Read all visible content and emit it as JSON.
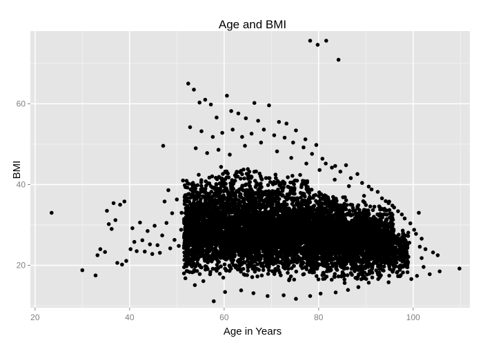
{
  "chart_data": {
    "type": "scatter",
    "title": "Age and BMI",
    "xlabel": "Age in Years",
    "ylabel": "BMI",
    "xlim": [
      19,
      112
    ],
    "ylim": [
      9.5,
      78
    ],
    "x_ticks": [
      20,
      40,
      60,
      80,
      100
    ],
    "y_ticks": [
      20,
      40,
      60
    ],
    "grid": true,
    "colors": {
      "panel": "#e5e5e5",
      "grid_major": "#ffffff",
      "grid_minor": "#f2f2f2",
      "point": "#000000",
      "tick": "#7f7f7f"
    },
    "points": [
      [
        23.5,
        33
      ],
      [
        30,
        18.8
      ],
      [
        32.8,
        17.5
      ],
      [
        33.2,
        22.5
      ],
      [
        33.8,
        24
      ],
      [
        34.8,
        23.3
      ],
      [
        35.2,
        33.5
      ],
      [
        35.6,
        30.2
      ],
      [
        36.2,
        29
      ],
      [
        36.6,
        35.4
      ],
      [
        37,
        31.2
      ],
      [
        37.4,
        20.6
      ],
      [
        38,
        35
      ],
      [
        38.4,
        20.2
      ],
      [
        38.9,
        35.8
      ],
      [
        39.3,
        21.1
      ],
      [
        40.2,
        24
      ],
      [
        40.6,
        29.2
      ],
      [
        41,
        25.8
      ],
      [
        41.5,
        23.5
      ],
      [
        42.2,
        30.6
      ],
      [
        42.7,
        26.2
      ],
      [
        43.2,
        23.4
      ],
      [
        43.8,
        28.5
      ],
      [
        44.3,
        25.2
      ],
      [
        44.8,
        22.8
      ],
      [
        45.3,
        29.8
      ],
      [
        45.9,
        25
      ],
      [
        46.4,
        23.1
      ],
      [
        46.9,
        27.4
      ],
      [
        47.1,
        49.6
      ],
      [
        47.4,
        35.8
      ],
      [
        47.8,
        30.5
      ],
      [
        48.2,
        38.6
      ],
      [
        48.6,
        24.2
      ],
      [
        49,
        32.9
      ],
      [
        49.5,
        26.3
      ],
      [
        50,
        36.3
      ],
      [
        50.4,
        24.8
      ],
      [
        50.9,
        28.8
      ],
      [
        51,
        33
      ],
      [
        51.3,
        41
      ],
      [
        52.4,
        65
      ],
      [
        53.6,
        63.5
      ],
      [
        54.8,
        60.3
      ],
      [
        56,
        61
      ],
      [
        57.2,
        59.8
      ],
      [
        58.4,
        56.6
      ],
      [
        60.6,
        62
      ],
      [
        61.5,
        58.2
      ],
      [
        63,
        57.6
      ],
      [
        64.6,
        56.4
      ],
      [
        66.4,
        60.2
      ],
      [
        67.2,
        55.8
      ],
      [
        69.5,
        59.6
      ],
      [
        71.6,
        55.5
      ],
      [
        73.2,
        55.1
      ],
      [
        75.2,
        53.4
      ],
      [
        77.2,
        51.2
      ],
      [
        79.5,
        49.8
      ],
      [
        81.5,
        45.2
      ],
      [
        83.5,
        44.6
      ],
      [
        85.8,
        44.8
      ],
      [
        88.2,
        42.6
      ],
      [
        90.6,
        39.5
      ],
      [
        92.5,
        38.2
      ],
      [
        94.8,
        35.4
      ],
      [
        96.8,
        33.4
      ],
      [
        98.2,
        31.6
      ],
      [
        100.2,
        28.8
      ],
      [
        101.2,
        33
      ],
      [
        101.8,
        26.6
      ],
      [
        102.6,
        24
      ],
      [
        103.5,
        17.8
      ],
      [
        104.2,
        23.2
      ],
      [
        105.2,
        22.5
      ],
      [
        105.6,
        18.5
      ],
      [
        109.8,
        19.2
      ],
      [
        78.2,
        75.6
      ],
      [
        79.8,
        74.6
      ],
      [
        81.6,
        75.6
      ],
      [
        84.2,
        70.9
      ],
      [
        57.8,
        11.1
      ],
      [
        60.2,
        13.4
      ],
      [
        63.6,
        13.8
      ],
      [
        66.2,
        13.1
      ],
      [
        69.2,
        12.4
      ],
      [
        72.6,
        12.6
      ],
      [
        75.2,
        11.7
      ],
      [
        78.2,
        12.4
      ],
      [
        80.4,
        13
      ],
      [
        83.6,
        13.3
      ],
      [
        86.2,
        13.9
      ],
      [
        88.4,
        14.6
      ],
      [
        90.6,
        15.7
      ],
      [
        92.6,
        16.6
      ],
      [
        94.8,
        15.8
      ],
      [
        96.8,
        17.3
      ],
      [
        98.8,
        18.3
      ],
      [
        53.8,
        15.1
      ],
      [
        55.6,
        16.1
      ],
      [
        51.8,
        16.8
      ],
      [
        52.8,
        54.2
      ],
      [
        55.2,
        53.2
      ],
      [
        57.6,
        51.8
      ],
      [
        59.6,
        52.8
      ],
      [
        61.8,
        53.6
      ],
      [
        63.8,
        51.8
      ],
      [
        65.8,
        52.6
      ],
      [
        68.4,
        53.6
      ],
      [
        70.6,
        52.2
      ],
      [
        72.8,
        51.6
      ],
      [
        74.6,
        50.4
      ],
      [
        76.8,
        49.2
      ],
      [
        78.6,
        47.6
      ],
      [
        80.8,
        46.4
      ],
      [
        82.8,
        44.2
      ],
      [
        84.6,
        43.2
      ],
      [
        86.8,
        41.6
      ],
      [
        89.2,
        40.4
      ],
      [
        91.2,
        38.8
      ],
      [
        93.4,
        36.6
      ],
      [
        95.6,
        34.8
      ],
      [
        97.6,
        32.6
      ],
      [
        99.4,
        30.4
      ],
      [
        100.6,
        27.8
      ],
      [
        101.4,
        24.6
      ],
      [
        101.8,
        21.8
      ],
      [
        102.2,
        19.6
      ],
      [
        100.8,
        17.4
      ],
      [
        99.6,
        16.6
      ],
      [
        54,
        49
      ],
      [
        56.4,
        47.8
      ],
      [
        58.8,
        48.6
      ],
      [
        61.2,
        47.4
      ],
      [
        64.4,
        49.6
      ],
      [
        67.8,
        50.4
      ],
      [
        71.2,
        48.2
      ],
      [
        74.2,
        46.6
      ],
      [
        77.4,
        45.2
      ],
      [
        80.2,
        43.6
      ],
      [
        83.4,
        41.2
      ],
      [
        86.4,
        39.6
      ],
      [
        89.6,
        37.2
      ],
      [
        92.8,
        34.6
      ],
      [
        95.4,
        31.2
      ],
      [
        97.8,
        28.6
      ],
      [
        99.2,
        25.6
      ]
    ],
    "dense_regions": [
      {
        "x": [
          51.5,
          58
        ],
        "y": [
          17,
          43
        ],
        "count": 700
      },
      {
        "x": [
          58,
          68
        ],
        "y": [
          16,
          45
        ],
        "count": 1000
      },
      {
        "x": [
          68,
          78
        ],
        "y": [
          16,
          43
        ],
        "count": 1000
      },
      {
        "x": [
          78,
          86
        ],
        "y": [
          15,
          39
        ],
        "count": 800
      },
      {
        "x": [
          86,
          93
        ],
        "y": [
          16,
          34
        ],
        "count": 600
      },
      {
        "x": [
          93,
          99
        ],
        "y": [
          17,
          29
        ],
        "count": 300
      },
      {
        "x": [
          52,
          96
        ],
        "y": [
          20,
          36
        ],
        "count": 2500
      }
    ]
  }
}
